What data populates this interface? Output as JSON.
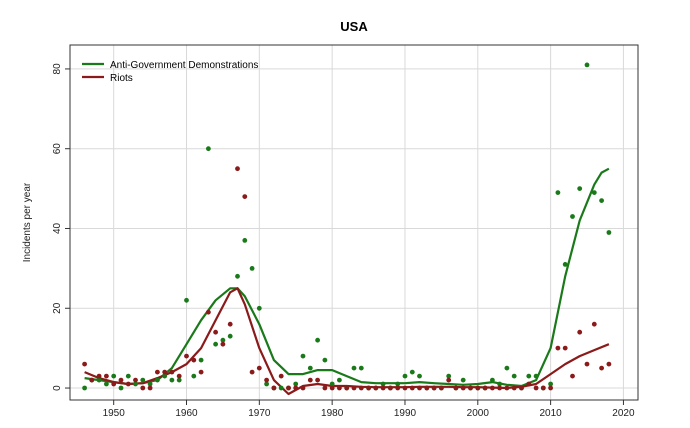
{
  "chart_data": {
    "type": "scatter",
    "title": "USA",
    "xlabel": "",
    "ylabel": "Incidents per year",
    "xlim": [
      1944,
      2022
    ],
    "ylim": [
      -3,
      86
    ],
    "xticks": [
      1950,
      1960,
      1970,
      1980,
      1990,
      2000,
      2010,
      2020
    ],
    "yticks": [
      0,
      20,
      40,
      60,
      80
    ],
    "grid": true,
    "legend_position": "top-left",
    "series": [
      {
        "name": "Anti-Government Demonstrations",
        "color": "#1a7a1a",
        "points": [
          [
            1946,
            0
          ],
          [
            1947,
            2
          ],
          [
            1948,
            2
          ],
          [
            1949,
            1
          ],
          [
            1950,
            3
          ],
          [
            1951,
            0
          ],
          [
            1952,
            3
          ],
          [
            1953,
            1
          ],
          [
            1954,
            2
          ],
          [
            1955,
            1
          ],
          [
            1956,
            2
          ],
          [
            1957,
            3
          ],
          [
            1958,
            2
          ],
          [
            1959,
            2
          ],
          [
            1960,
            22
          ],
          [
            1961,
            3
          ],
          [
            1962,
            7
          ],
          [
            1963,
            60
          ],
          [
            1964,
            11
          ],
          [
            1965,
            12
          ],
          [
            1966,
            13
          ],
          [
            1967,
            28
          ],
          [
            1968,
            37
          ],
          [
            1969,
            30
          ],
          [
            1970,
            20
          ],
          [
            1971,
            1
          ],
          [
            1972,
            0
          ],
          [
            1973,
            0
          ],
          [
            1974,
            0
          ],
          [
            1975,
            1
          ],
          [
            1976,
            8
          ],
          [
            1977,
            5
          ],
          [
            1978,
            12
          ],
          [
            1979,
            7
          ],
          [
            1980,
            1
          ],
          [
            1981,
            2
          ],
          [
            1982,
            0
          ],
          [
            1983,
            5
          ],
          [
            1984,
            5
          ],
          [
            1985,
            0
          ],
          [
            1986,
            0
          ],
          [
            1987,
            1
          ],
          [
            1988,
            0
          ],
          [
            1989,
            1
          ],
          [
            1990,
            3
          ],
          [
            1991,
            4
          ],
          [
            1992,
            3
          ],
          [
            1993,
            0
          ],
          [
            1994,
            0
          ],
          [
            1995,
            0
          ],
          [
            1996,
            3
          ],
          [
            1997,
            0
          ],
          [
            1998,
            2
          ],
          [
            1999,
            0
          ],
          [
            2000,
            0
          ],
          [
            2001,
            0
          ],
          [
            2002,
            2
          ],
          [
            2003,
            1
          ],
          [
            2004,
            5
          ],
          [
            2005,
            3
          ],
          [
            2006,
            0
          ],
          [
            2007,
            3
          ],
          [
            2008,
            3
          ],
          [
            2009,
            0
          ],
          [
            2010,
            1
          ],
          [
            2011,
            49
          ],
          [
            2012,
            31
          ],
          [
            2013,
            43
          ],
          [
            2014,
            50
          ],
          [
            2015,
            81
          ],
          [
            2016,
            49
          ],
          [
            2017,
            47
          ],
          [
            2018,
            39
          ]
        ],
        "trend": [
          [
            1946,
            2.5
          ],
          [
            1948,
            2
          ],
          [
            1950,
            1.5
          ],
          [
            1952,
            1
          ],
          [
            1954,
            1.2
          ],
          [
            1956,
            2
          ],
          [
            1958,
            5
          ],
          [
            1960,
            11
          ],
          [
            1962,
            17
          ],
          [
            1964,
            22
          ],
          [
            1966,
            25
          ],
          [
            1967,
            25
          ],
          [
            1968,
            23
          ],
          [
            1970,
            16
          ],
          [
            1972,
            7
          ],
          [
            1974,
            3.5
          ],
          [
            1976,
            3.5
          ],
          [
            1978,
            4.5
          ],
          [
            1980,
            4.5
          ],
          [
            1982,
            3
          ],
          [
            1984,
            1.5
          ],
          [
            1986,
            1.2
          ],
          [
            1988,
            1.2
          ],
          [
            1990,
            1.2
          ],
          [
            1992,
            1.5
          ],
          [
            1994,
            1.2
          ],
          [
            1996,
            1
          ],
          [
            1998,
            0.8
          ],
          [
            2000,
            1
          ],
          [
            2002,
            1.5
          ],
          [
            2004,
            0.8
          ],
          [
            2006,
            0.5
          ],
          [
            2008,
            2
          ],
          [
            2010,
            10
          ],
          [
            2012,
            28
          ],
          [
            2014,
            42
          ],
          [
            2016,
            51
          ],
          [
            2017,
            54
          ],
          [
            2018,
            55
          ]
        ]
      },
      {
        "name": "Riots",
        "color": "#8b1a1a",
        "points": [
          [
            1946,
            6
          ],
          [
            1947,
            2
          ],
          [
            1948,
            3
          ],
          [
            1949,
            3
          ],
          [
            1950,
            1
          ],
          [
            1951,
            2
          ],
          [
            1952,
            1
          ],
          [
            1953,
            2
          ],
          [
            1954,
            0
          ],
          [
            1955,
            0
          ],
          [
            1956,
            4
          ],
          [
            1957,
            4
          ],
          [
            1958,
            4
          ],
          [
            1959,
            3
          ],
          [
            1960,
            8
          ],
          [
            1961,
            7
          ],
          [
            1962,
            4
          ],
          [
            1963,
            19
          ],
          [
            1964,
            14
          ],
          [
            1965,
            11
          ],
          [
            1966,
            16
          ],
          [
            1967,
            55
          ],
          [
            1968,
            48
          ],
          [
            1969,
            4
          ],
          [
            1970,
            5
          ],
          [
            1971,
            2
          ],
          [
            1972,
            0
          ],
          [
            1973,
            3
          ],
          [
            1974,
            0
          ],
          [
            1975,
            0
          ],
          [
            1976,
            0
          ],
          [
            1977,
            2
          ],
          [
            1978,
            2
          ],
          [
            1979,
            0
          ],
          [
            1980,
            0
          ],
          [
            1981,
            0
          ],
          [
            1982,
            0
          ],
          [
            1983,
            0
          ],
          [
            1984,
            0
          ],
          [
            1985,
            0
          ],
          [
            1986,
            0
          ],
          [
            1987,
            0
          ],
          [
            1988,
            0
          ],
          [
            1989,
            0
          ],
          [
            1990,
            0
          ],
          [
            1991,
            0
          ],
          [
            1992,
            0
          ],
          [
            1993,
            0
          ],
          [
            1994,
            0
          ],
          [
            1995,
            0
          ],
          [
            1996,
            2
          ],
          [
            1997,
            0
          ],
          [
            1998,
            0
          ],
          [
            1999,
            0
          ],
          [
            2000,
            0
          ],
          [
            2001,
            0
          ],
          [
            2002,
            0
          ],
          [
            2003,
            0
          ],
          [
            2004,
            0
          ],
          [
            2005,
            0
          ],
          [
            2006,
            0
          ],
          [
            2007,
            1
          ],
          [
            2008,
            0
          ],
          [
            2009,
            0
          ],
          [
            2010,
            0
          ],
          [
            2011,
            10
          ],
          [
            2012,
            10
          ],
          [
            2013,
            3
          ],
          [
            2014,
            14
          ],
          [
            2015,
            6
          ],
          [
            2016,
            16
          ],
          [
            2017,
            5
          ],
          [
            2018,
            6
          ]
        ],
        "trend": [
          [
            1946,
            4
          ],
          [
            1948,
            2.5
          ],
          [
            1950,
            1.5
          ],
          [
            1952,
            1
          ],
          [
            1954,
            1.2
          ],
          [
            1956,
            2.5
          ],
          [
            1958,
            4
          ],
          [
            1960,
            6
          ],
          [
            1962,
            10
          ],
          [
            1964,
            17
          ],
          [
            1966,
            24
          ],
          [
            1967,
            25
          ],
          [
            1968,
            21
          ],
          [
            1970,
            10
          ],
          [
            1972,
            2
          ],
          [
            1974,
            -1.5
          ],
          [
            1976,
            0.5
          ],
          [
            1978,
            1
          ],
          [
            1980,
            0.5
          ],
          [
            1982,
            0.5
          ],
          [
            1984,
            0.3
          ],
          [
            1986,
            0.2
          ],
          [
            1988,
            0.2
          ],
          [
            1990,
            0.2
          ],
          [
            1992,
            0.3
          ],
          [
            1994,
            0.3
          ],
          [
            1996,
            0.3
          ],
          [
            1998,
            0.2
          ],
          [
            2000,
            0.2
          ],
          [
            2002,
            0.1
          ],
          [
            2004,
            0
          ],
          [
            2006,
            0.3
          ],
          [
            2008,
            1
          ],
          [
            2010,
            3.5
          ],
          [
            2012,
            6
          ],
          [
            2014,
            8
          ],
          [
            2016,
            9.5
          ],
          [
            2018,
            11
          ]
        ]
      }
    ]
  }
}
